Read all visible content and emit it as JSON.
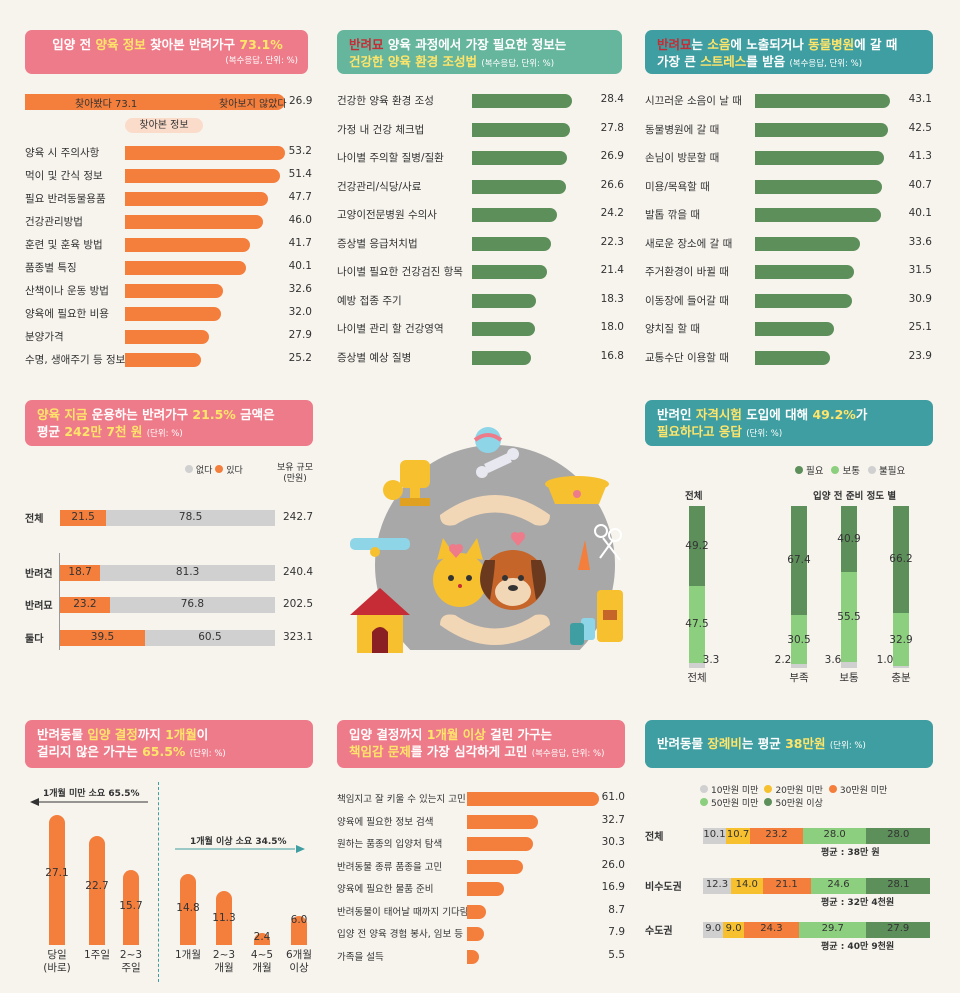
{
  "p1": {
    "title_a": "입양 전 ",
    "title_hl": "양육 정보",
    "title_b": " 찾아본 반려가구 ",
    "title_pct": "73.1%",
    "sub": "(복수응답, 단위: %)",
    "found_label": "찾아봤다 73.1",
    "notfound_label": "찾아보지 않았다",
    "notfound_val": "26.9",
    "tag": "찾아본 정보"
  },
  "p2": {
    "title_a": "반려묘",
    "title_b": " 양육 과정에서 가장 필요한 정보는",
    "title_c": "건강한 양육 환경 조성법",
    "sub": "(복수응답, 단위: %)"
  },
  "p3": {
    "title_a": "반려묘",
    "title_b": "는 ",
    "title_c": "소음",
    "title_d": "에 노출되거나 ",
    "title_e": "동물병원",
    "title_f": "에 갈 때",
    "title_g": "가장 큰 ",
    "title_h": "스트레스",
    "title_i": "를 받음",
    "sub": "(복수응답, 단위: %)"
  },
  "p4": {
    "title_a": "양육 지금",
    "title_b": " 운용하는 반려가구 ",
    "title_c": "21.5%",
    "title_d": " 금액은",
    "title_e": "평균 ",
    "title_f": "242만 7천 원",
    "sub": "(단위: %)",
    "legend_no": "없다",
    "legend_yes": "있다",
    "legend_size": "보유 규모",
    "legend_unit": "(만원)"
  },
  "p5": {
    "title_a": "반려인 ",
    "title_b": "자격시험",
    "title_c": " 도입에 대해 ",
    "title_d": "49.2%",
    "title_e": "가",
    "title_f": "필요하다고 응답",
    "sub": "(단위: %)",
    "legend": [
      "필요",
      "보통",
      "불필요"
    ],
    "group_title": "입양 전 준비 정도 별",
    "total_title": "전체"
  },
  "p6": {
    "title_a": "반려동물 ",
    "title_b": "입양 결정",
    "title_c": "까지 ",
    "title_d": "1개월",
    "title_e": "이",
    "title_f": "걸리지 않은 가구는 ",
    "title_g": "65.5%",
    "sub": "(단위: %)",
    "under_label": "1개월 미만 소요 65.5%",
    "over_label": "1개월 이상 소요 34.5%"
  },
  "p7": {
    "title_a": "입양 결정까지 ",
    "title_b": "1개월 이상",
    "title_c": " 걸린 가구는",
    "title_d": "책임감 문제",
    "title_e": "를 가장 심각하게 고민",
    "sub": "(복수응답, 단위: %)"
  },
  "p8": {
    "title_a": "반려동물 ",
    "title_b": "장례비",
    "title_c": "는 평균 ",
    "title_d": "38만원",
    "sub": "(단위: %)",
    "legend": [
      "10만원 미만",
      "20만원 미만",
      "30만원 미만",
      "50만원 미만",
      "50만원 이상"
    ]
  },
  "colors": {
    "orange": "#f47e3c",
    "dark_green": "#5d8f5a",
    "mid_green": "#8ccf7e",
    "gray": "#d0d0d0",
    "yellow": "#f6c02f",
    "pink": "#ee7b8a",
    "teal": "#3e9ea1",
    "green": "#66b59d"
  },
  "chart_data": [
    {
      "type": "bar",
      "title": "입양 전 양육 정보 찾아본 반려가구 73.1%",
      "subtitle": "찾아본 정보",
      "categories": [
        "양육 시 주의사항",
        "먹이 및 간식 정보",
        "필요 반려동물용품",
        "건강관리방법",
        "훈련 및 훈육 방법",
        "품종별 특징",
        "산책이나 운동 방법",
        "양육에 필요한 비용",
        "분양가격",
        "수명, 생애주기 등 정보"
      ],
      "values": [
        53.2,
        51.4,
        47.7,
        46.0,
        41.7,
        40.1,
        32.6,
        32.0,
        27.9,
        25.2
      ],
      "value_labels": [
        "53.2",
        "51.4",
        "47.7",
        "46.0",
        "41.7",
        "40.1",
        "32.6",
        "32.0",
        "27.9",
        "25.2"
      ]
    },
    {
      "type": "bar",
      "title": "반려묘 양육 과정에서 가장 필요한 정보는 건강한 양육 환경 조성법",
      "categories": [
        "건강한 양육 환경 조성",
        "가정 내 건강 체크법",
        "나이별 주의할 질병/질환",
        "건강관리/식당/사료",
        "고양이전문병원 수의사",
        "증상별 응급처치법",
        "나이별 필요한 건강검진 항목",
        "예방 접종 주기",
        "나이별 관리 할 건강영역",
        "증상별 예상 질병"
      ],
      "values": [
        28.4,
        27.8,
        26.9,
        26.6,
        24.2,
        22.3,
        21.4,
        18.3,
        18.0,
        16.8
      ],
      "value_labels": [
        "28.4",
        "27.8",
        "26.9",
        "26.6",
        "24.2",
        "22.3",
        "21.4",
        "18.3",
        "18.0",
        "16.8"
      ]
    },
    {
      "type": "bar",
      "title": "반려묘는 소음에 노출되거나 동물병원에 갈 때 가장 큰 스트레스를 받음",
      "categories": [
        "시끄러운 소음이 날 때",
        "동물병원에 갈 때",
        "손님이 방문할 때",
        "미용/목욕할 때",
        "발톱 깎을 때",
        "새로운 장소에 갈 때",
        "주거환경이 바뀔 때",
        "이동장에 들어갈 때",
        "양치질 할 때",
        "교통수단 이용할 때"
      ],
      "values": [
        43.1,
        42.5,
        41.3,
        40.7,
        40.1,
        33.6,
        31.5,
        30.9,
        25.1,
        23.9
      ],
      "value_labels": [
        "43.1",
        "42.5",
        "41.3",
        "40.7",
        "40.1",
        "33.6",
        "31.5",
        "30.9",
        "25.1",
        "23.9"
      ]
    },
    {
      "type": "bar",
      "title": "양육 지금 운용하는 반려가구 21.5% 금액은 평균 242만 7천 원",
      "categories": [
        "전체",
        "반려견",
        "반려묘",
        "둘다"
      ],
      "series": [
        {
          "name": "있다",
          "values": [
            21.5,
            18.7,
            23.2,
            39.5
          ]
        },
        {
          "name": "없다",
          "values": [
            78.5,
            81.3,
            76.8,
            60.5
          ]
        }
      ],
      "extra_column": {
        "name": "보유 규모",
        "values": [
          242.7,
          240.4,
          202.5,
          323.1
        ]
      },
      "labels": {
        "yes": [
          "21.5",
          "18.7",
          "23.2",
          "39.5"
        ],
        "no": [
          "78.5",
          "81.3",
          "76.8",
          "60.5"
        ],
        "size": [
          "242.7",
          "240.4",
          "202.5",
          "323.1"
        ]
      }
    },
    {
      "type": "bar",
      "title": "반려인 자격시험 도입에 대해 49.2%가 필요하다고 응답",
      "categories": [
        "전체",
        "부족",
        "보통",
        "충분"
      ],
      "series": [
        {
          "name": "필요",
          "values": [
            49.2,
            67.4,
            40.9,
            66.2
          ]
        },
        {
          "name": "보통",
          "values": [
            47.5,
            30.5,
            55.5,
            32.9
          ]
        },
        {
          "name": "불필요",
          "values": [
            3.3,
            2.2,
            3.6,
            1.0
          ]
        }
      ],
      "labels": {
        "need": [
          "49.2",
          "67.4",
          "40.9",
          "66.2"
        ],
        "normal": [
          "47.5",
          "30.5",
          "55.5",
          "32.9"
        ],
        "no": [
          "3.3",
          "2.2",
          "3.6",
          "1.0"
        ]
      }
    },
    {
      "type": "bar",
      "title": "반려동물 입양 결정까지 1개월이 걸리지 않은 가구는 65.5%",
      "categories": [
        "당일 (바로)",
        "1주일",
        "2~3 주일",
        "1개월",
        "2~3 개월",
        "4~5 개월",
        "6개월 이상"
      ],
      "values": [
        27.1,
        22.7,
        15.7,
        14.8,
        11.3,
        2.4,
        6.0
      ],
      "value_labels": [
        "27.1",
        "22.7",
        "15.7",
        "14.8",
        "11.3",
        "2.4",
        "6.0"
      ],
      "cat_l1": [
        "당일",
        "1주일",
        "2~3",
        "1개월",
        "2~3",
        "4~5",
        "6개월"
      ],
      "cat_l2": [
        "(바로)",
        "",
        "주일",
        "",
        "개월",
        "개월",
        "이상"
      ]
    },
    {
      "type": "bar",
      "title": "입양 결정까지 1개월 이상 걸린 가구는 책임감 문제를 가장 심각하게 고민",
      "categories": [
        "책임지고 잘 키울 수 있는지 고민",
        "양육에 필요한 정보 검색",
        "원하는 품종의 입양처 탐색",
        "반려동물 종류 품종을 고민",
        "양육에 필요한 물품 준비",
        "반려동물이 태어날 때까지 기다림",
        "입양 전 양육 경험 봉사, 임보 등",
        "가족을 설득"
      ],
      "values": [
        61.0,
        32.7,
        30.3,
        26.0,
        16.9,
        8.7,
        7.9,
        5.5
      ],
      "value_labels": [
        "61.0",
        "32.7",
        "30.3",
        "26.0",
        "16.9",
        "8.7",
        "7.9",
        "5.5"
      ]
    },
    {
      "type": "bar",
      "title": "반려동물 장례비는 평균 38만원",
      "categories": [
        "전체",
        "비수도권",
        "수도권"
      ],
      "series": [
        {
          "name": "10만원 미만",
          "values": [
            10.1,
            12.3,
            9.0
          ]
        },
        {
          "name": "20만원 미만",
          "values": [
            10.7,
            14.0,
            9.0
          ]
        },
        {
          "name": "30만원 미만",
          "values": [
            23.2,
            21.1,
            24.3
          ]
        },
        {
          "name": "50만원 미만",
          "values": [
            28.0,
            24.6,
            29.7
          ]
        },
        {
          "name": "50만원 이상",
          "values": [
            28.0,
            28.1,
            27.9
          ]
        }
      ],
      "labels": [
        [
          "10.1",
          "10.7",
          "23.2",
          "28.0",
          "28.0"
        ],
        [
          "12.3",
          "14.0",
          "21.1",
          "24.6",
          "28.1"
        ],
        [
          "9.0",
          "9.0",
          "24.3",
          "29.7",
          "27.9"
        ]
      ],
      "averages": [
        "평균 : 38만 원",
        "평균 : 32만 4천원",
        "평균 : 40만 9천원"
      ]
    }
  ]
}
